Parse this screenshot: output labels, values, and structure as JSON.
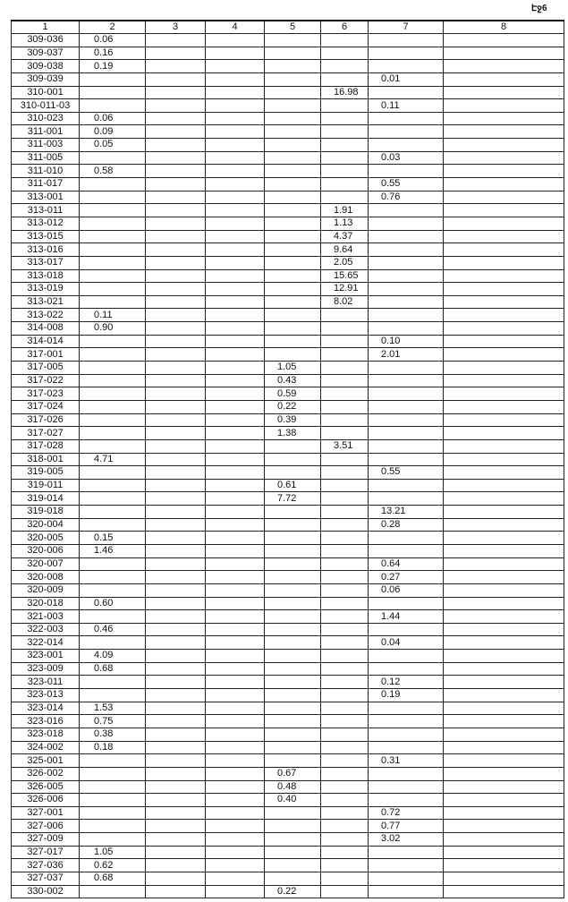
{
  "page_label": "Էջ6",
  "columns": [
    "1",
    "2",
    "3",
    "4",
    "5",
    "6",
    "7",
    "8"
  ],
  "rows": [
    [
      "309-036",
      "0.06",
      "",
      "",
      "",
      "",
      "",
      ""
    ],
    [
      "309-037",
      "0.16",
      "",
      "",
      "",
      "",
      "",
      ""
    ],
    [
      "309-038",
      "0.19",
      "",
      "",
      "",
      "",
      "",
      ""
    ],
    [
      "309-039",
      "",
      "",
      "",
      "",
      "",
      "0.01",
      ""
    ],
    [
      "310-001",
      "",
      "",
      "",
      "",
      "16.98",
      "",
      ""
    ],
    [
      "310-011-03",
      "",
      "",
      "",
      "",
      "",
      "0.11",
      ""
    ],
    [
      "310-023",
      "0.06",
      "",
      "",
      "",
      "",
      "",
      ""
    ],
    [
      "311-001",
      "0.09",
      "",
      "",
      "",
      "",
      "",
      ""
    ],
    [
      "311-003",
      "0.05",
      "",
      "",
      "",
      "",
      "",
      ""
    ],
    [
      "311-005",
      "",
      "",
      "",
      "",
      "",
      "0.03",
      ""
    ],
    [
      "311-010",
      "0.58",
      "",
      "",
      "",
      "",
      "",
      ""
    ],
    [
      "311-017",
      "",
      "",
      "",
      "",
      "",
      "0.55",
      ""
    ],
    [
      "313-001",
      "",
      "",
      "",
      "",
      "",
      "0.76",
      ""
    ],
    [
      "313-011",
      "",
      "",
      "",
      "",
      "1.91",
      "",
      ""
    ],
    [
      "313-012",
      "",
      "",
      "",
      "",
      "1.13",
      "",
      ""
    ],
    [
      "313-015",
      "",
      "",
      "",
      "",
      "4.37",
      "",
      ""
    ],
    [
      "313-016",
      "",
      "",
      "",
      "",
      "9.64",
      "",
      ""
    ],
    [
      "313-017",
      "",
      "",
      "",
      "",
      "2.05",
      "",
      ""
    ],
    [
      "313-018",
      "",
      "",
      "",
      "",
      "15.65",
      "",
      ""
    ],
    [
      "313-019",
      "",
      "",
      "",
      "",
      "12.91",
      "",
      ""
    ],
    [
      "313-021",
      "",
      "",
      "",
      "",
      "8.02",
      "",
      ""
    ],
    [
      "313-022",
      "0.11",
      "",
      "",
      "",
      "",
      "",
      ""
    ],
    [
      "314-008",
      "0.90",
      "",
      "",
      "",
      "",
      "",
      ""
    ],
    [
      "314-014",
      "",
      "",
      "",
      "",
      "",
      "0.10",
      ""
    ],
    [
      "317-001",
      "",
      "",
      "",
      "",
      "",
      "2.01",
      ""
    ],
    [
      "317-005",
      "",
      "",
      "",
      "1.05",
      "",
      "",
      ""
    ],
    [
      "317-022",
      "",
      "",
      "",
      "0.43",
      "",
      "",
      ""
    ],
    [
      "317-023",
      "",
      "",
      "",
      "0.59",
      "",
      "",
      ""
    ],
    [
      "317-024",
      "",
      "",
      "",
      "0.22",
      "",
      "",
      ""
    ],
    [
      "317-026",
      "",
      "",
      "",
      "0.39",
      "",
      "",
      ""
    ],
    [
      "317-027",
      "",
      "",
      "",
      "1.38",
      "",
      "",
      ""
    ],
    [
      "317-028",
      "",
      "",
      "",
      "",
      "3.51",
      "",
      ""
    ],
    [
      "318-001",
      "4.71",
      "",
      "",
      "",
      "",
      "",
      ""
    ],
    [
      "319-005",
      "",
      "",
      "",
      "",
      "",
      "0.55",
      ""
    ],
    [
      "319-011",
      "",
      "",
      "",
      "0.61",
      "",
      "",
      ""
    ],
    [
      "319-014",
      "",
      "",
      "",
      "7.72",
      "",
      "",
      ""
    ],
    [
      "319-018",
      "",
      "",
      "",
      "",
      "",
      "13.21",
      ""
    ],
    [
      "320-004",
      "",
      "",
      "",
      "",
      "",
      "0.28",
      ""
    ],
    [
      "320-005",
      "0.15",
      "",
      "",
      "",
      "",
      "",
      ""
    ],
    [
      "320-006",
      "1.46",
      "",
      "",
      "",
      "",
      "",
      ""
    ],
    [
      "320-007",
      "",
      "",
      "",
      "",
      "",
      "0.64",
      ""
    ],
    [
      "320-008",
      "",
      "",
      "",
      "",
      "",
      "0.27",
      ""
    ],
    [
      "320-009",
      "",
      "",
      "",
      "",
      "",
      "0.06",
      ""
    ],
    [
      "320-018",
      "0.60",
      "",
      "",
      "",
      "",
      "",
      ""
    ],
    [
      "321-003",
      "",
      "",
      "",
      "",
      "",
      "1.44",
      ""
    ],
    [
      "322-003",
      "0.46",
      "",
      "",
      "",
      "",
      "",
      ""
    ],
    [
      "322-014",
      "",
      "",
      "",
      "",
      "",
      "0.04",
      ""
    ],
    [
      "323-001",
      "4.09",
      "",
      "",
      "",
      "",
      "",
      ""
    ],
    [
      "323-009",
      "0.68",
      "",
      "",
      "",
      "",
      "",
      ""
    ],
    [
      "323-011",
      "",
      "",
      "",
      "",
      "",
      "0.12",
      ""
    ],
    [
      "323-013",
      "",
      "",
      "",
      "",
      "",
      "0.19",
      ""
    ],
    [
      "323-014",
      "1.53",
      "",
      "",
      "",
      "",
      "",
      ""
    ],
    [
      "323-016",
      "0.75",
      "",
      "",
      "",
      "",
      "",
      ""
    ],
    [
      "323-018",
      "0.38",
      "",
      "",
      "",
      "",
      "",
      ""
    ],
    [
      "324-002",
      "0.18",
      "",
      "",
      "",
      "",
      "",
      ""
    ],
    [
      "325-001",
      "",
      "",
      "",
      "",
      "",
      "0.31",
      ""
    ],
    [
      "326-002",
      "",
      "",
      "",
      "0.67",
      "",
      "",
      ""
    ],
    [
      "326-005",
      "",
      "",
      "",
      "0.48",
      "",
      "",
      ""
    ],
    [
      "326-006",
      "",
      "",
      "",
      "0.40",
      "",
      "",
      ""
    ],
    [
      "327-001",
      "",
      "",
      "",
      "",
      "",
      "0.72",
      ""
    ],
    [
      "327-006",
      "",
      "",
      "",
      "",
      "",
      "0.77",
      ""
    ],
    [
      "327-009",
      "",
      "",
      "",
      "",
      "",
      "3.02",
      ""
    ],
    [
      "327-017",
      "1.05",
      "",
      "",
      "",
      "",
      "",
      ""
    ],
    [
      "327-036",
      "0.62",
      "",
      "",
      "",
      "",
      "",
      ""
    ],
    [
      "327-037",
      "0.68",
      "",
      "",
      "",
      "",
      "",
      ""
    ],
    [
      "330-002",
      "",
      "",
      "",
      "0.22",
      "",
      "",
      ""
    ]
  ]
}
